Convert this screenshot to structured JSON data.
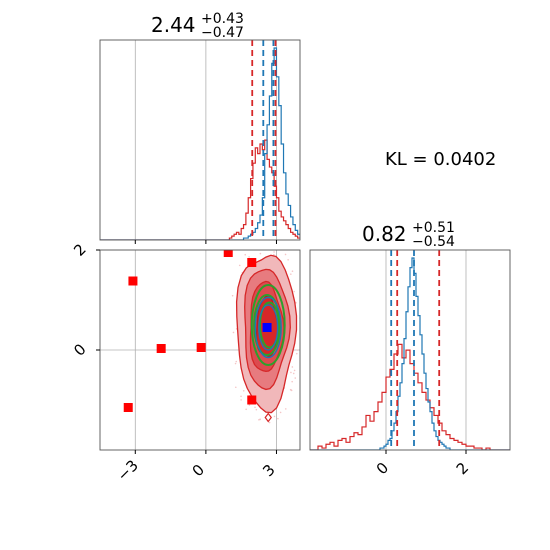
{
  "chart_data": [
    {
      "type": "histogram",
      "panel": "top-left",
      "title": "2.44",
      "title_sup": "+0.43",
      "title_sub": "−0.47",
      "xlim": [
        -4.5,
        4.0
      ],
      "grid": true,
      "x_ticks": [
        -3,
        0,
        3
      ],
      "show_tick_labels": false,
      "series": [
        {
          "color": "#1f77b4",
          "bin_start": 1.4,
          "bin_width": 0.1,
          "counts": [
            0,
            0,
            1,
            1,
            2,
            3,
            4,
            6,
            9,
            13,
            22,
            45,
            60,
            75,
            92,
            100,
            85,
            70,
            50,
            35,
            24,
            18,
            12,
            8,
            5,
            3,
            2,
            1,
            1,
            0
          ]
        },
        {
          "color": "#d62728",
          "bin_start": 1.0,
          "bin_width": 0.1,
          "counts": [
            1,
            2,
            3,
            4,
            3,
            6,
            8,
            14,
            22,
            32,
            40,
            48,
            45,
            50,
            47,
            52,
            42,
            38,
            35,
            28,
            22,
            15,
            12,
            10,
            8,
            6,
            4,
            3,
            2,
            1,
            1
          ]
        }
      ],
      "vlines": [
        {
          "x": 1.97,
          "color": "#d62728"
        },
        {
          "x": 2.44,
          "color": "#1f77b4"
        },
        {
          "x": 2.87,
          "color": "#1f77b4"
        },
        {
          "x": 2.96,
          "color": "#d62728"
        }
      ]
    },
    {
      "type": "contour",
      "panel": "bottom-left",
      "xlim": [
        -4.5,
        4.0
      ],
      "ylim": [
        -2.0,
        2.0
      ],
      "grid": true,
      "x_ticks": [
        -3,
        0,
        3
      ],
      "y_ticks": [
        0,
        2
      ],
      "x_tick_labels": [
        "−3",
        "0",
        "3"
      ],
      "y_tick_labels": [
        "0",
        "2"
      ],
      "contours_red": [
        {
          "cx": 2.55,
          "cy": 0.4,
          "rx": 1.25,
          "ry": 1.55,
          "fill": "#f1b8ba",
          "stroke": "#d62728"
        },
        {
          "cx": 2.55,
          "cy": 0.45,
          "rx": 0.95,
          "ry": 1.2,
          "fill": "#e77b7f",
          "stroke": "#d62728"
        },
        {
          "cx": 2.55,
          "cy": 0.45,
          "rx": 0.7,
          "ry": 0.9,
          "fill": "#dc4a4f",
          "stroke": "#d62728"
        },
        {
          "cx": 2.6,
          "cy": 0.45,
          "rx": 0.45,
          "ry": 0.6,
          "fill": "#d62728",
          "stroke": "#b51f20"
        }
      ],
      "contours_blue": [
        {
          "cx": 2.65,
          "cy": 0.45,
          "rx": 0.55,
          "ry": 0.6
        },
        {
          "cx": 2.65,
          "cy": 0.45,
          "rx": 0.4,
          "ry": 0.45
        }
      ],
      "contours_green": [
        {
          "cx": 2.65,
          "cy": 0.5,
          "rx": 0.7,
          "ry": 0.8
        },
        {
          "cx": 2.6,
          "cy": 0.5,
          "rx": 0.55,
          "ry": 0.6
        },
        {
          "cx": 2.7,
          "cy": 0.5,
          "rx": 0.4,
          "ry": 0.45
        }
      ],
      "red_squares": [
        [
          -3.1,
          1.38
        ],
        [
          -1.9,
          0.03
        ],
        [
          -0.2,
          0.05
        ],
        [
          -3.3,
          -1.15
        ],
        [
          0.95,
          1.95
        ],
        [
          1.95,
          1.75
        ],
        [
          1.95,
          -1.0
        ]
      ],
      "blue_square": [
        2.6,
        0.45
      ],
      "red_diamond": [
        2.65,
        -1.35
      ]
    },
    {
      "type": "histogram",
      "panel": "bottom-right",
      "title": "0.82",
      "title_sup": "+0.51",
      "title_sub": "−0.54",
      "xlim": [
        -1.9,
        3.1
      ],
      "grid": true,
      "x_ticks": [
        0,
        2
      ],
      "x_tick_labels": [
        "0",
        "2"
      ],
      "series": [
        {
          "color": "#1f77b4",
          "bin_start": -0.2,
          "bin_width": 0.05,
          "counts": [
            0,
            1,
            1,
            2,
            3,
            5,
            6,
            10,
            14,
            20,
            28,
            35,
            45,
            58,
            72,
            85,
            95,
            100,
            92,
            80,
            70,
            60,
            50,
            40,
            32,
            25,
            20,
            14,
            10,
            7,
            5,
            4,
            3,
            2,
            1,
            1,
            0
          ]
        },
        {
          "color": "#d62728",
          "bin_start": -1.8,
          "bin_width": 0.1,
          "counts": [
            0,
            2,
            1,
            3,
            4,
            2,
            5,
            6,
            4,
            7,
            9,
            8,
            12,
            18,
            15,
            20,
            25,
            30,
            38,
            42,
            50,
            55,
            48,
            52,
            45,
            40,
            35,
            30,
            26,
            22,
            18,
            14,
            10,
            8,
            6,
            5,
            4,
            3,
            2,
            2,
            1,
            1,
            0,
            1,
            0
          ]
        }
      ],
      "vlines": [
        {
          "x": 0.13,
          "color": "#1f77b4"
        },
        {
          "x": 0.28,
          "color": "#d62728"
        },
        {
          "x": 0.7,
          "color": "#1f77b4"
        },
        {
          "x": 1.33,
          "color": "#d62728"
        }
      ]
    }
  ],
  "annotation": "KL = 0.0402"
}
